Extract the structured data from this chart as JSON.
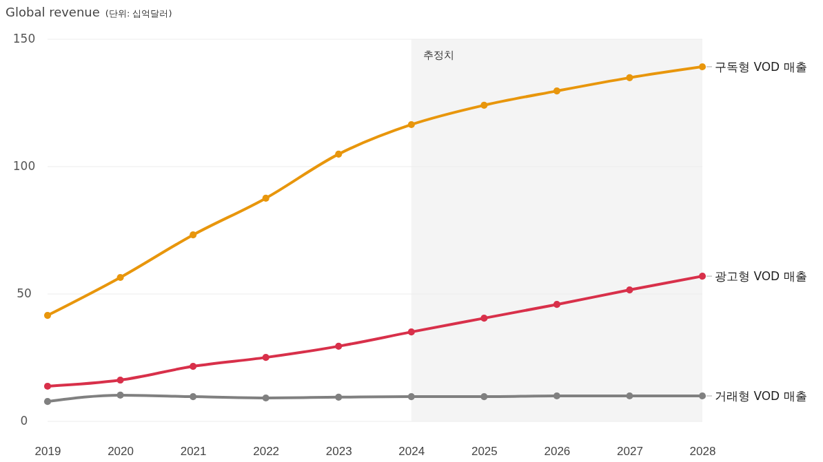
{
  "chart_data": {
    "type": "line",
    "title": "Global revenue",
    "subtitle": "(단위: 십억달러)",
    "x": [
      2019,
      2020,
      2021,
      2022,
      2023,
      2024,
      2025,
      2026,
      2027,
      2028
    ],
    "xlim": [
      2019,
      2028
    ],
    "xticks": [
      2019,
      2020,
      2021,
      2022,
      2023,
      2024,
      2025,
      2026,
      2027,
      2028
    ],
    "ylim": [
      0,
      150
    ],
    "yticks": [
      0,
      50,
      100,
      150
    ],
    "grid": "y",
    "legend": false,
    "marker": "circle",
    "line_style": "solid",
    "bands": [
      {
        "axis": "x",
        "from": 2024,
        "to": 2028,
        "label": "추정치",
        "color": "#f4f4f4"
      }
    ],
    "series": [
      {
        "name": "구독형 VOD 매출",
        "color": "#e8960c",
        "values": [
          41.6,
          56.5,
          73.2,
          87.6,
          104.9,
          116.5,
          124.1,
          129.7,
          134.9,
          139.2
        ]
      },
      {
        "name": "광고형 VOD 매출",
        "color": "#d8304a",
        "values": [
          13.8,
          16.2,
          21.6,
          25.1,
          29.5,
          35.1,
          40.5,
          45.9,
          51.6,
          57.0
        ]
      },
      {
        "name": "거래형 VOD 매출",
        "color": "#808080",
        "values": [
          7.8,
          10.3,
          9.7,
          9.2,
          9.5,
          9.7,
          9.7,
          10.0,
          10.0,
          10.0
        ]
      }
    ]
  }
}
